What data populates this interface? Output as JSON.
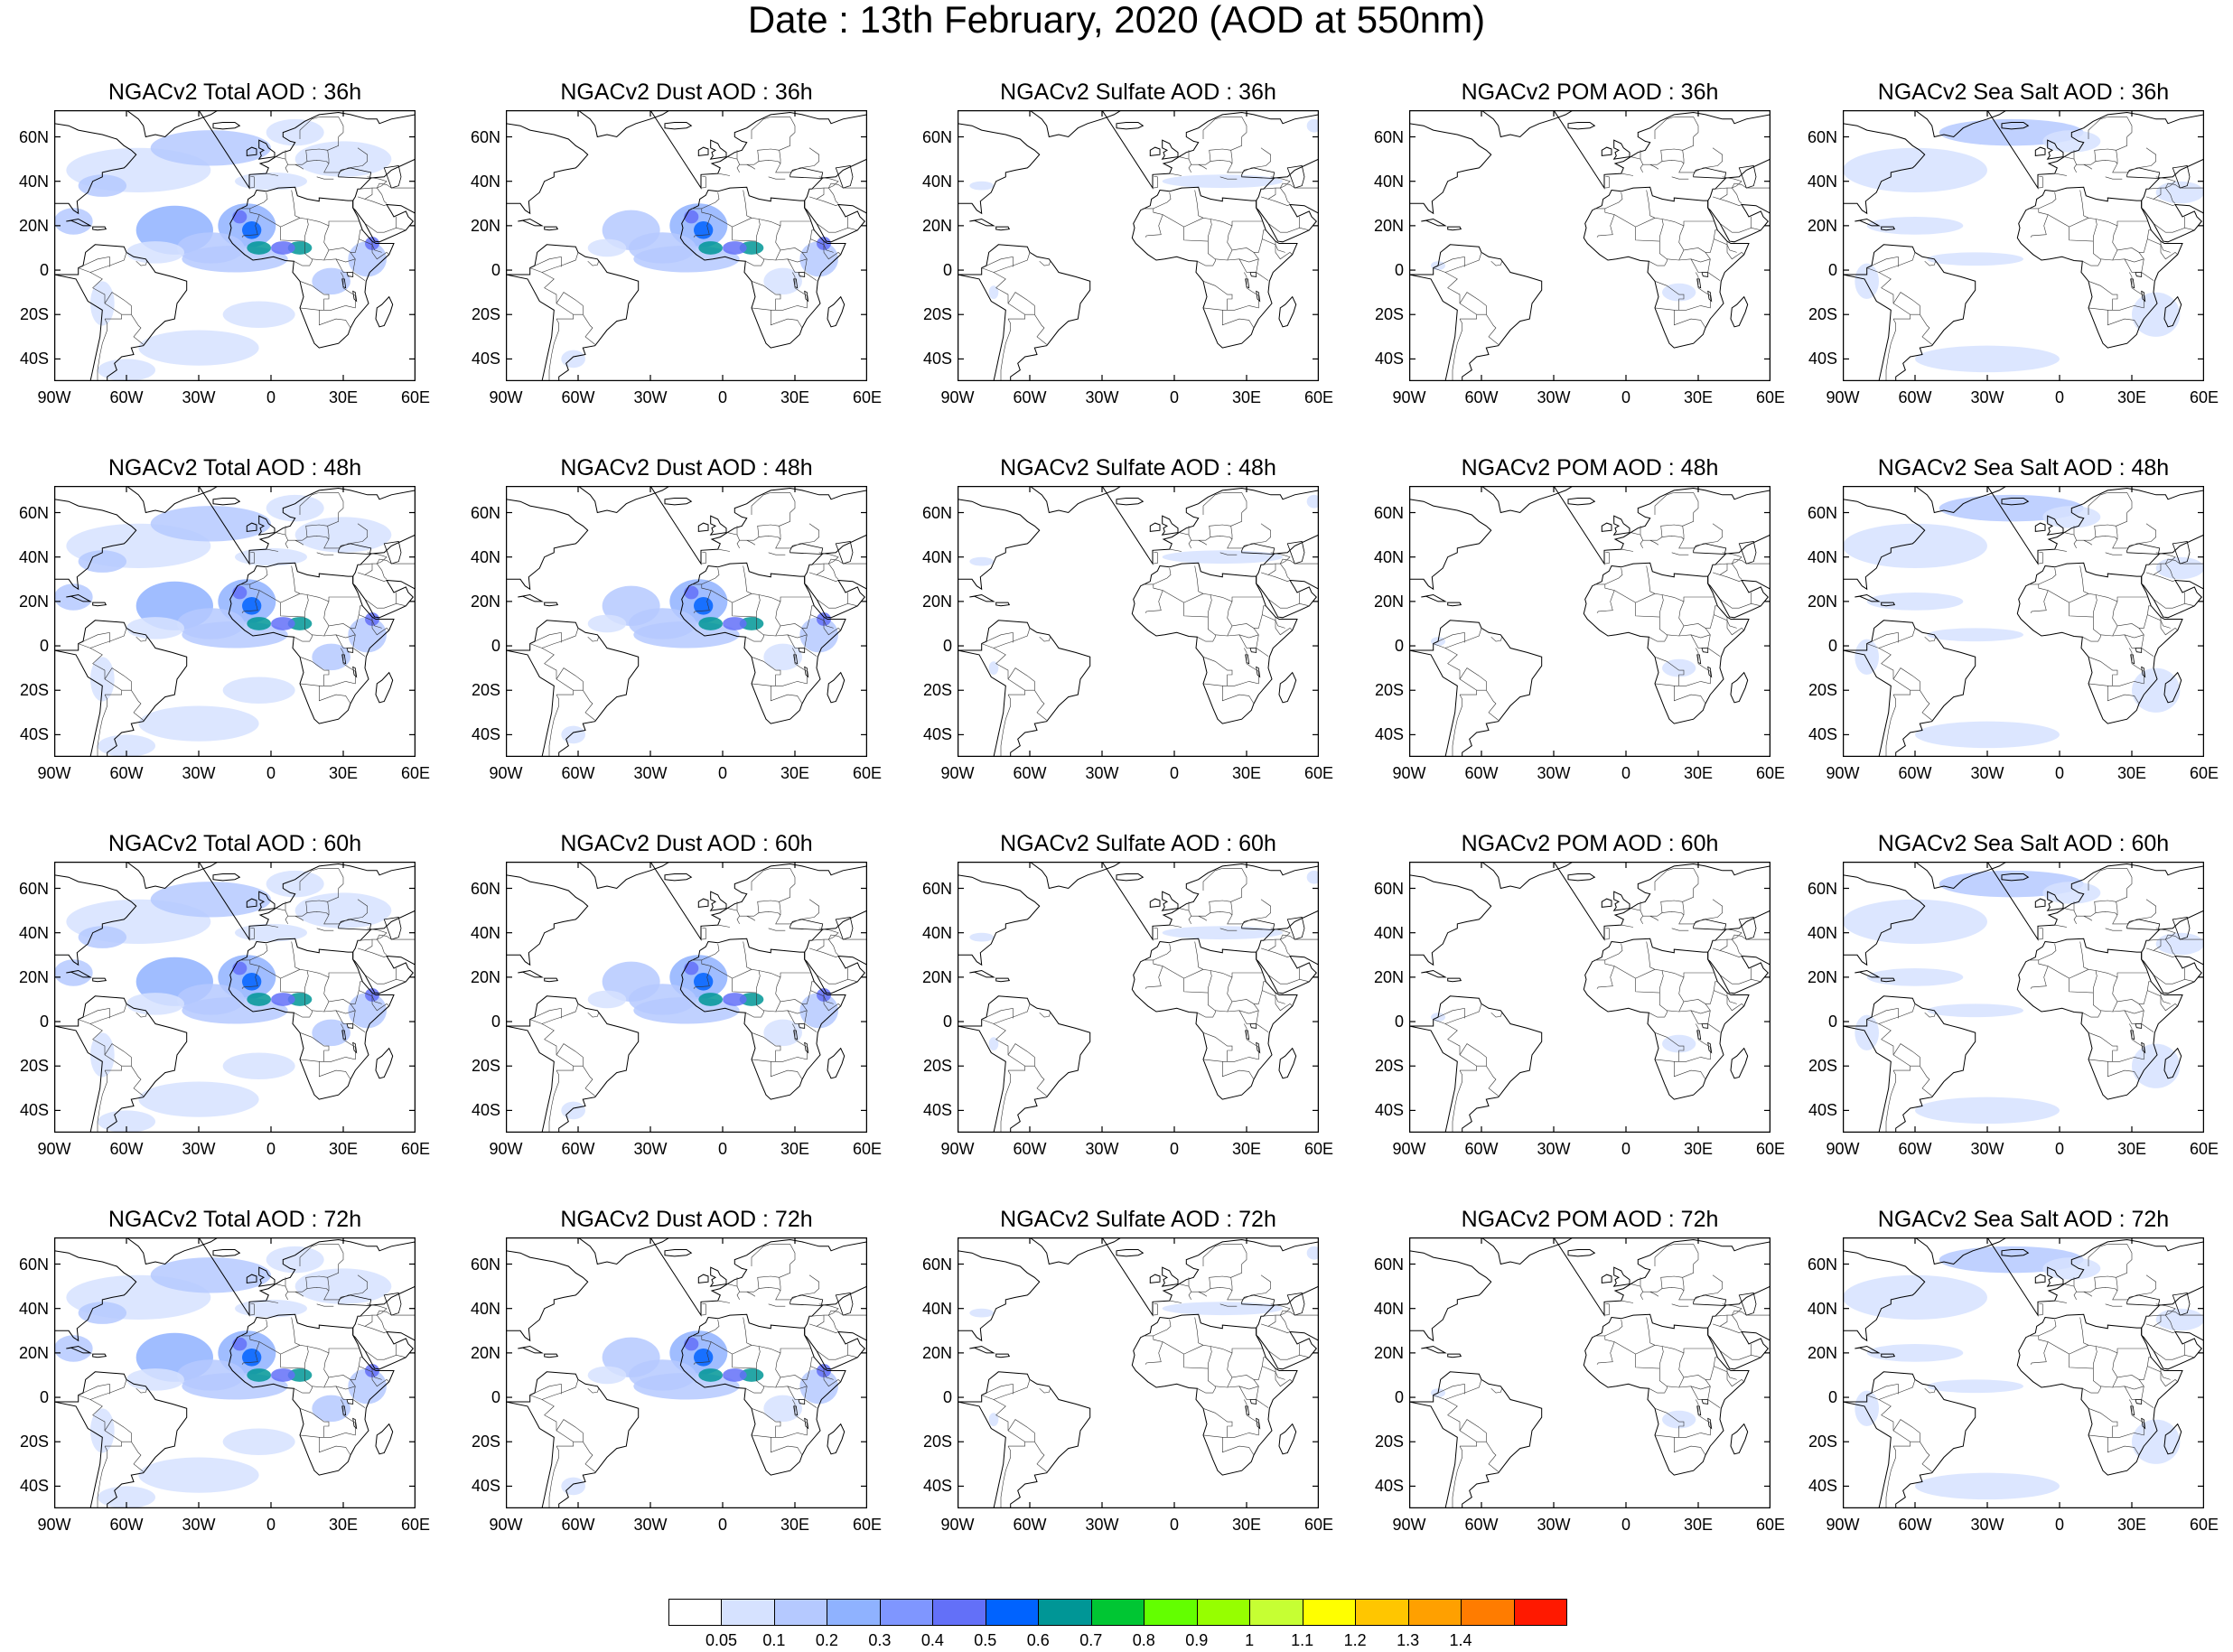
{
  "title": "Date : 13th February, 2020 (AOD at 550nm)",
  "lat_labels": [
    "60N",
    "40N",
    "20N",
    "0",
    "20S",
    "40S"
  ],
  "lon_labels": [
    "90W",
    "60W",
    "30W",
    "0",
    "30E",
    "60E"
  ],
  "species": [
    {
      "key": "total",
      "label": "Total"
    },
    {
      "key": "dust",
      "label": "Dust"
    },
    {
      "key": "sulfate",
      "label": "Sulfate"
    },
    {
      "key": "pom",
      "label": "POM"
    },
    {
      "key": "seasalt",
      "label": "Sea Salt"
    }
  ],
  "panels": [
    [
      "NGACv2 Total AOD : 36h",
      "NGACv2 Dust AOD : 36h",
      "NGACv2 Sulfate AOD : 36h",
      "NGACv2 POM AOD : 36h",
      "NGACv2 Sea Salt AOD : 36h"
    ],
    [
      "NGACv2 Total AOD : 48h",
      "NGACv2 Dust AOD : 48h",
      "NGACv2 Sulfate AOD : 48h",
      "NGACv2 POM AOD : 48h",
      "NGACv2 Sea Salt AOD : 48h"
    ],
    [
      "NGACv2 Total AOD : 60h",
      "NGACv2 Dust AOD : 60h",
      "NGACv2 Sulfate AOD : 60h",
      "NGACv2 POM AOD : 60h",
      "NGACv2 Sea Salt AOD : 60h"
    ],
    [
      "NGACv2 Total AOD : 72h",
      "NGACv2 Dust AOD : 72h",
      "NGACv2 Sulfate AOD : 72h",
      "NGACv2 POM AOD : 72h",
      "NGACv2 Sea Salt  AOD : 72h"
    ]
  ],
  "colorbar": {
    "labels": [
      "0.05",
      "0.1",
      "0.2",
      "0.3",
      "0.4",
      "0.5",
      "0.6",
      "0.7",
      "0.8",
      "0.9",
      "1",
      "1.1",
      "1.2",
      "1.3",
      "1.4"
    ],
    "colors": [
      "#ffffff",
      "#d6e2ff",
      "#b5c9ff",
      "#8fb2ff",
      "#7f96ff",
      "#6370f8",
      "#0063ff",
      "#009696",
      "#00c633",
      "#63ff00",
      "#96ff00",
      "#c6ff33",
      "#ffff00",
      "#ffc600",
      "#ffa000",
      "#ff7c00",
      "#ff1900"
    ]
  }
}
